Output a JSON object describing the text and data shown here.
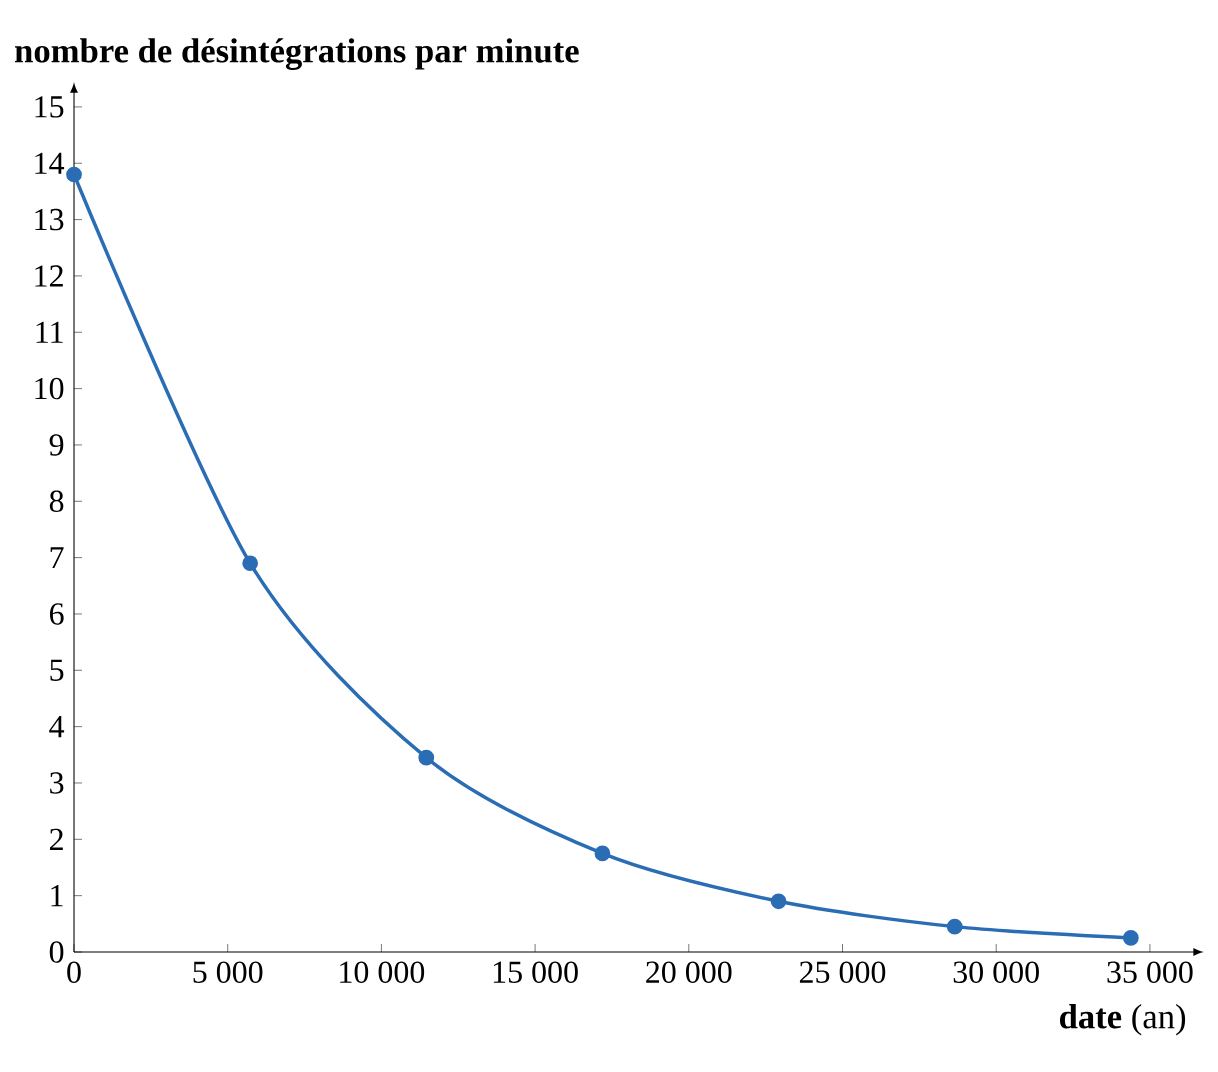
{
  "chart_data": {
    "type": "line",
    "ylabel": "**nombre de désintégrations par minute**",
    "xlabel": "**date** (an)",
    "x": [
      0,
      5730,
      11460,
      17190,
      22920,
      28650,
      34380
    ],
    "series": [
      {
        "color": "#2a6db5",
        "values": [
          13.8,
          6.9,
          3.45,
          1.75,
          0.9,
          0.45,
          0.25
        ]
      }
    ],
    "xlim": [
      0,
      36500
    ],
    "ylim": [
      0,
      15.3
    ],
    "xticks": [
      0,
      {
        "value": 5000,
        "label": "5 000"
      },
      {
        "value": 10000,
        "label": "10 000"
      },
      {
        "value": 15000,
        "label": "15 000"
      },
      {
        "value": 20000,
        "label": "20 000"
      },
      {
        "value": 25000,
        "label": "25 000"
      },
      {
        "value": 30000,
        "label": "30 000"
      },
      {
        "value": 35000,
        "label": "35 000"
      }
    ],
    "yticks": [
      0,
      1,
      2,
      3,
      4,
      5,
      6,
      7,
      8,
      9,
      10,
      11,
      12,
      13,
      14,
      15
    ],
    "marker": "circle",
    "line_style": "solid",
    "grid": false,
    "legend": false
  }
}
